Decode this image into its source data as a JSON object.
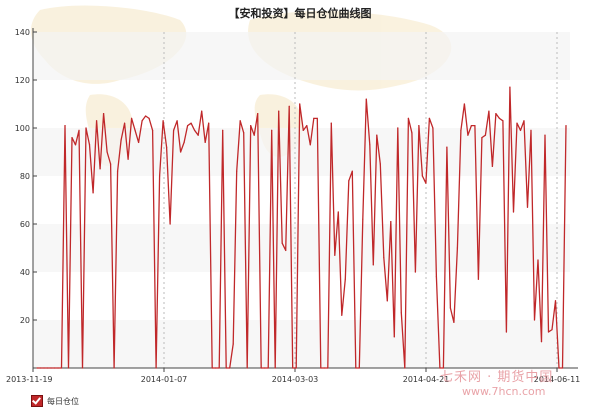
{
  "chart_data": {
    "type": "line",
    "title": "【安和投资】每日仓位曲线图",
    "xlabel": "",
    "ylabel": "",
    "ylim": [
      0,
      140
    ],
    "yticks": [
      20,
      40,
      60,
      80,
      100,
      120,
      140
    ],
    "xtick_labels": [
      "2013-11-19",
      "2014-01-07",
      "2014-03-03",
      "2014-04-21",
      "2014-06-11"
    ],
    "grid": "alternating horizontal bands; dotted vertical lines at x ticks",
    "legend": "bottom-left",
    "series": [
      {
        "name": "每日仓位",
        "color": "#c0282a",
        "values": [
          0,
          0,
          0,
          0,
          0,
          0,
          0,
          0,
          101,
          0,
          96,
          93,
          99,
          0,
          100,
          93,
          73,
          103,
          83,
          106,
          90,
          85,
          0,
          82,
          95,
          102,
          87,
          104,
          99,
          94,
          103,
          105,
          104,
          99,
          0,
          80,
          103,
          92,
          60,
          99,
          103,
          90,
          94,
          101,
          102,
          99,
          97,
          107,
          94,
          102,
          0,
          0,
          0,
          99,
          0,
          0,
          10,
          82,
          103,
          98,
          0,
          101,
          97,
          106,
          0,
          0,
          0,
          99,
          0,
          107,
          52,
          49,
          109,
          0,
          0,
          110,
          99,
          101,
          93,
          104,
          104,
          0,
          0,
          0,
          102,
          47,
          65,
          22,
          37,
          78,
          82,
          0,
          0,
          62,
          112,
          93,
          43,
          97,
          85,
          46,
          28,
          61,
          13,
          100,
          23,
          0,
          104,
          98,
          40,
          101,
          80,
          77,
          104,
          100,
          38,
          0,
          0,
          92,
          25,
          19,
          50,
          99,
          110,
          97,
          101,
          101,
          37,
          96,
          97,
          107,
          84,
          106,
          104,
          103,
          15,
          117,
          65,
          102,
          99,
          103,
          67,
          99,
          20,
          45,
          11,
          97,
          15,
          16,
          28,
          0,
          0,
          101
        ]
      }
    ]
  },
  "legend": {
    "label": "每日仓位"
  },
  "watermark": {
    "title": "七禾网 · 期货中国",
    "url": "www.7hcn.com"
  }
}
